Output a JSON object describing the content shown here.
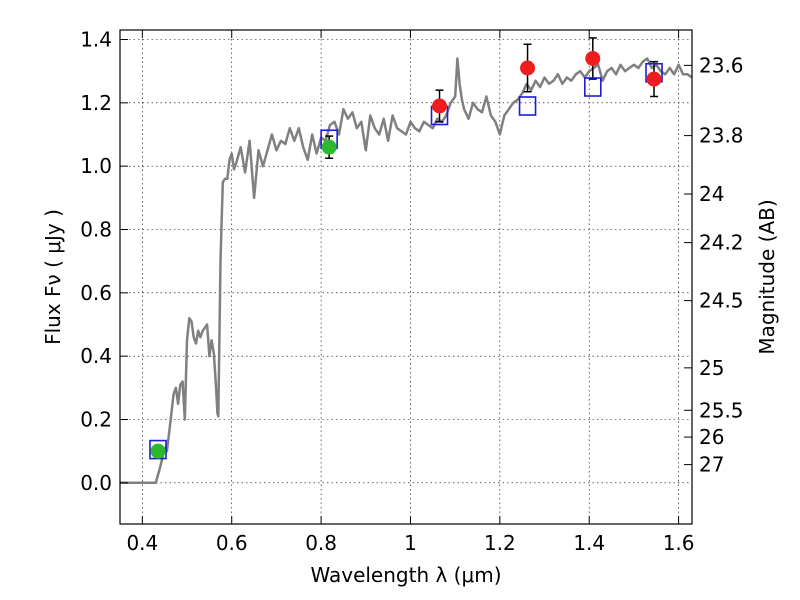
{
  "chart_data": {
    "type": "line",
    "xlabel": "Wavelength  λ (μm)",
    "ylabel": "Flux  Fν  ( μJy )",
    "ylabel_right": "Magnitude (AB)",
    "xlim": [
      0.35,
      1.63
    ],
    "ylim": [
      -0.13,
      1.43
    ],
    "x_ticks": [
      0.4,
      0.6,
      0.8,
      1.0,
      1.2,
      1.4,
      1.6
    ],
    "x_tick_labels": [
      "0.4",
      "0.6",
      "0.8",
      "1",
      "1.2",
      "1.4",
      "1.6"
    ],
    "y_ticks": [
      0.0,
      0.2,
      0.4,
      0.6,
      0.8,
      1.0,
      1.2,
      1.4
    ],
    "y_tick_labels": [
      "0.0",
      "0.2",
      "0.4",
      "0.6",
      "0.8",
      "1.0",
      "1.2",
      "1.4"
    ],
    "right_ticks": [
      {
        "label": "23.6",
        "flux": 1.3183
      },
      {
        "label": "23.8",
        "flux": 1.0965
      },
      {
        "label": "24",
        "flux": 0.912
      },
      {
        "label": "24.2",
        "flux": 0.7586
      },
      {
        "label": "24.5",
        "flux": 0.5754
      },
      {
        "label": "25",
        "flux": 0.3631
      },
      {
        "label": "25.5",
        "flux": 0.2291
      },
      {
        "label": "26",
        "flux": 0.1445
      },
      {
        "label": "27",
        "flux": 0.0575
      }
    ],
    "grid": true,
    "series": [
      {
        "style": "template",
        "color": "#808080",
        "x": [
          0.35,
          0.4,
          0.43,
          0.44,
          0.45,
          0.455,
          0.46,
          0.465,
          0.47,
          0.475,
          0.48,
          0.485,
          0.49,
          0.495,
          0.5,
          0.505,
          0.51,
          0.515,
          0.52,
          0.525,
          0.53,
          0.535,
          0.54,
          0.545,
          0.55,
          0.555,
          0.56,
          0.565,
          0.568,
          0.57,
          0.575,
          0.58,
          0.585,
          0.59,
          0.595,
          0.6,
          0.605,
          0.61,
          0.62,
          0.63,
          0.64,
          0.65,
          0.66,
          0.67,
          0.68,
          0.69,
          0.7,
          0.71,
          0.72,
          0.73,
          0.74,
          0.75,
          0.76,
          0.77,
          0.78,
          0.79,
          0.8,
          0.81,
          0.82,
          0.83,
          0.84,
          0.85,
          0.86,
          0.87,
          0.88,
          0.89,
          0.9,
          0.91,
          0.92,
          0.93,
          0.94,
          0.95,
          0.96,
          0.97,
          0.98,
          0.99,
          1.0,
          1.01,
          1.02,
          1.03,
          1.04,
          1.05,
          1.06,
          1.07,
          1.08,
          1.09,
          1.1,
          1.105,
          1.11,
          1.115,
          1.12,
          1.13,
          1.14,
          1.15,
          1.16,
          1.17,
          1.18,
          1.19,
          1.2,
          1.21,
          1.22,
          1.23,
          1.24,
          1.25,
          1.26,
          1.27,
          1.28,
          1.29,
          1.3,
          1.31,
          1.32,
          1.33,
          1.34,
          1.35,
          1.36,
          1.37,
          1.38,
          1.39,
          1.4,
          1.41,
          1.42,
          1.43,
          1.44,
          1.45,
          1.46,
          1.47,
          1.48,
          1.49,
          1.5,
          1.51,
          1.52,
          1.53,
          1.54,
          1.55,
          1.56,
          1.57,
          1.58,
          1.59,
          1.6,
          1.61,
          1.62,
          1.63
        ],
        "y": [
          0.0,
          0.0,
          0.0,
          0.05,
          0.11,
          0.1,
          0.16,
          0.22,
          0.28,
          0.3,
          0.25,
          0.31,
          0.32,
          0.2,
          0.45,
          0.52,
          0.51,
          0.46,
          0.44,
          0.48,
          0.46,
          0.48,
          0.49,
          0.5,
          0.4,
          0.45,
          0.41,
          0.3,
          0.22,
          0.21,
          0.7,
          0.95,
          0.96,
          0.96,
          1.02,
          1.04,
          0.99,
          1.01,
          1.06,
          0.98,
          1.08,
          0.9,
          1.05,
          1.0,
          1.05,
          1.1,
          1.05,
          1.08,
          1.07,
          1.12,
          1.08,
          1.12,
          1.06,
          1.02,
          1.1,
          1.04,
          1.09,
          1.08,
          1.13,
          1.14,
          1.1,
          1.18,
          1.15,
          1.17,
          1.12,
          1.14,
          1.05,
          1.16,
          1.12,
          1.1,
          1.15,
          1.08,
          1.16,
          1.12,
          1.11,
          1.1,
          1.14,
          1.12,
          1.11,
          1.14,
          1.13,
          1.12,
          1.15,
          1.14,
          1.16,
          1.2,
          1.22,
          1.34,
          1.26,
          1.21,
          1.18,
          1.15,
          1.2,
          1.18,
          1.17,
          1.22,
          1.16,
          1.14,
          1.1,
          1.16,
          1.18,
          1.2,
          1.21,
          1.23,
          1.26,
          1.24,
          1.27,
          1.25,
          1.28,
          1.26,
          1.27,
          1.29,
          1.26,
          1.28,
          1.27,
          1.29,
          1.3,
          1.28,
          1.3,
          1.31,
          1.32,
          1.27,
          1.3,
          1.31,
          1.29,
          1.32,
          1.3,
          1.31,
          1.32,
          1.31,
          1.33,
          1.34,
          1.31,
          1.32,
          1.3,
          1.29,
          1.31,
          1.29,
          1.32,
          1.29,
          1.29,
          1.28
        ]
      },
      {
        "style": "model_points",
        "marker": "open-square",
        "color": "#1c1cd6",
        "x": [
          0.435,
          0.818,
          1.065,
          1.262,
          1.408,
          1.545
        ],
        "y": [
          0.105,
          1.085,
          1.16,
          1.19,
          1.25,
          1.295
        ]
      },
      {
        "style": "observed_ground",
        "marker": "circle",
        "color": "#2db82d",
        "x": [
          0.435,
          0.818
        ],
        "y": [
          0.1,
          1.06
        ],
        "err": [
          0.015,
          0.035
        ]
      },
      {
        "style": "observed_space",
        "marker": "circle",
        "color": "#ee1c1c",
        "x": [
          1.065,
          1.262,
          1.408,
          1.545
        ],
        "y": [
          1.19,
          1.31,
          1.34,
          1.275
        ],
        "err": [
          0.05,
          0.075,
          0.065,
          0.055
        ]
      }
    ]
  }
}
